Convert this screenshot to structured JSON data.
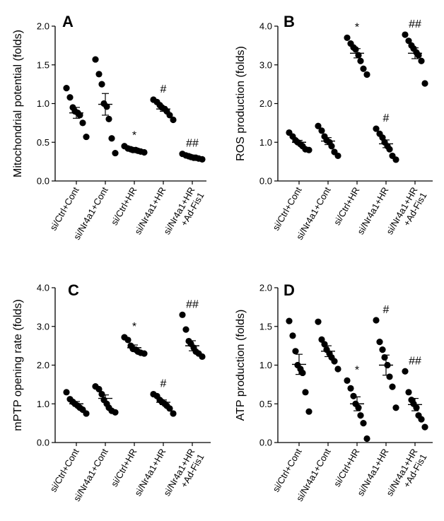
{
  "chart_data": [
    {
      "panel": "A",
      "type": "scatter",
      "ylabel": "Mitochondrial potential (folds)",
      "ylim": [
        0,
        2.0
      ],
      "yticks": [
        "0.0",
        "0.5",
        "1.0",
        "1.5",
        "2.0"
      ],
      "categories": [
        "si/Ctrl+Cont",
        "si/Nr4a1+Cont",
        "si/Ctrl+HR",
        "si/Nr4a1+HR",
        "si/Nr4a1+HR\n+Ad-Fis1"
      ],
      "points": [
        [
          1.2,
          1.08,
          0.95,
          0.9,
          0.88,
          0.85,
          0.75,
          0.57
        ],
        [
          1.57,
          1.38,
          1.25,
          1.0,
          0.96,
          0.8,
          0.55,
          0.36
        ],
        [
          0.45,
          0.42,
          0.41,
          0.4,
          0.4,
          0.39,
          0.38,
          0.37
        ],
        [
          1.05,
          1.02,
          0.98,
          0.95,
          0.93,
          0.9,
          0.85,
          0.79
        ],
        [
          0.35,
          0.33,
          0.32,
          0.31,
          0.3,
          0.3,
          0.29,
          0.28
        ]
      ],
      "means": [
        0.88,
        0.99,
        0.4,
        0.93,
        0.31
      ],
      "sem": [
        0.07,
        0.14,
        0.01,
        0.03,
        0.01
      ],
      "annotations": [
        "",
        "",
        "*",
        "#",
        "##"
      ]
    },
    {
      "panel": "B",
      "type": "scatter",
      "ylabel": "ROS production (folds)",
      "ylim": [
        0,
        4.0
      ],
      "yticks": [
        "0.0",
        "1.0",
        "2.0",
        "3.0",
        "4.0"
      ],
      "categories": [
        "si/Ctrl+Cont",
        "si/Nr4a1+Cont",
        "si/Ctrl+HR",
        "si/Nr4a1+HR",
        "si/Nr4a1+HR\n+Ad-Fis1"
      ],
      "points": [
        [
          1.25,
          1.15,
          1.05,
          1.0,
          0.95,
          0.9,
          0.82,
          0.8
        ],
        [
          1.42,
          1.3,
          1.15,
          1.05,
          1.0,
          0.9,
          0.75,
          0.65
        ],
        [
          3.7,
          3.55,
          3.45,
          3.4,
          3.25,
          3.1,
          2.9,
          2.75
        ],
        [
          1.35,
          1.22,
          1.12,
          1.0,
          0.9,
          0.82,
          0.65,
          0.55
        ],
        [
          3.78,
          3.62,
          3.5,
          3.42,
          3.32,
          3.25,
          3.1,
          2.52
        ]
      ],
      "means": [
        1.0,
        1.03,
        3.3,
        0.96,
        3.3
      ],
      "sem": [
        0.05,
        0.09,
        0.12,
        0.1,
        0.14
      ],
      "annotations": [
        "",
        "",
        "*",
        "#",
        "##"
      ]
    },
    {
      "panel": "C",
      "type": "scatter",
      "ylabel": "mPTP opening rate (folds)",
      "ylim": [
        0,
        4.0
      ],
      "yticks": [
        "0.0",
        "1.0",
        "2.0",
        "3.0",
        "4.0"
      ],
      "categories": [
        "si/Ctrl+Cont",
        "si/Nr4a1+Cont",
        "si/Ctrl+HR",
        "si/Nr4a1+HR",
        "si/Nr4a1+HR\n+Ad-Fis1"
      ],
      "points": [
        [
          1.3,
          1.12,
          1.05,
          1.0,
          0.95,
          0.9,
          0.85,
          0.75
        ],
        [
          1.45,
          1.38,
          1.25,
          1.1,
          1.0,
          0.9,
          0.82,
          0.78
        ],
        [
          2.72,
          2.65,
          2.5,
          2.42,
          2.4,
          2.35,
          2.32,
          2.3
        ],
        [
          1.25,
          1.2,
          1.1,
          1.05,
          1.0,
          0.95,
          0.88,
          0.75
        ],
        [
          3.3,
          2.92,
          2.62,
          2.55,
          2.45,
          2.35,
          2.3,
          2.22
        ]
      ],
      "means": [
        1.0,
        1.14,
        2.45,
        1.04,
        2.5
      ],
      "sem": [
        0.06,
        0.09,
        0.07,
        0.06,
        0.13
      ],
      "annotations": [
        "",
        "",
        "*",
        "#",
        "##"
      ]
    },
    {
      "panel": "D",
      "type": "scatter",
      "ylabel": "ATP production (folds)",
      "ylim": [
        0,
        2.0
      ],
      "yticks": [
        "0.0",
        "0.5",
        "1.0",
        "1.5",
        "2.0"
      ],
      "categories": [
        "si/Ctrl+Cont",
        "si/Nr4a1+Cont",
        "si/Ctrl+HR",
        "si/Nr4a1+HR",
        "si/Nr4a1+HR\n+Ad-Fis1"
      ],
      "points": [
        [
          1.57,
          1.38,
          1.18,
          1.0,
          0.95,
          0.9,
          0.65,
          0.4
        ],
        [
          1.56,
          1.33,
          1.27,
          1.2,
          1.15,
          1.1,
          1.05,
          0.95
        ],
        [
          0.8,
          0.7,
          0.6,
          0.5,
          0.45,
          0.35,
          0.25,
          0.05
        ],
        [
          1.58,
          1.3,
          1.2,
          1.1,
          1.0,
          0.85,
          0.72,
          0.45
        ],
        [
          0.92,
          0.65,
          0.55,
          0.5,
          0.45,
          0.35,
          0.3,
          0.2
        ]
      ],
      "means": [
        1.01,
        1.18,
        0.5,
        1.0,
        0.49
      ],
      "sem": [
        0.13,
        0.07,
        0.09,
        0.13,
        0.08
      ],
      "annotations": [
        "",
        "",
        "*",
        "#",
        "##"
      ]
    }
  ]
}
